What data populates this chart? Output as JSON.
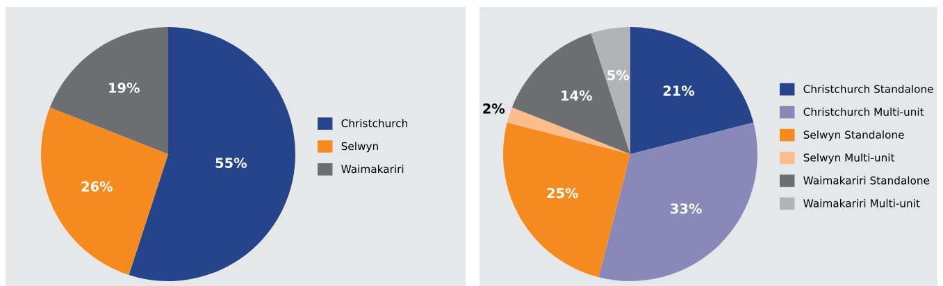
{
  "chart_data": [
    {
      "type": "pie",
      "categories": [
        "Christchurch",
        "Selwyn",
        "Waimakariri"
      ],
      "values": [
        55,
        26,
        19
      ],
      "colors": [
        "#25448b",
        "#f58b1f",
        "#6d6e71"
      ],
      "value_labels": [
        "55%",
        "26%",
        "19%"
      ],
      "legend": "right"
    },
    {
      "type": "pie",
      "categories": [
        "Christchurch Standalone",
        "Christchurch Multi-unit",
        "Selwyn Standalone",
        "Selwyn Multi-unit",
        "Waimakariri Standalone",
        "Waimakariri Multi-unit"
      ],
      "values": [
        21,
        33,
        25,
        2,
        14,
        5
      ],
      "colors": [
        "#25448b",
        "#8889b8",
        "#f58b1f",
        "#fbbd8b",
        "#6d6e71",
        "#b1b3b6"
      ],
      "value_labels": [
        "21%",
        "33%",
        "25%",
        "2%",
        "14%",
        "5%"
      ],
      "legend": "right"
    }
  ]
}
